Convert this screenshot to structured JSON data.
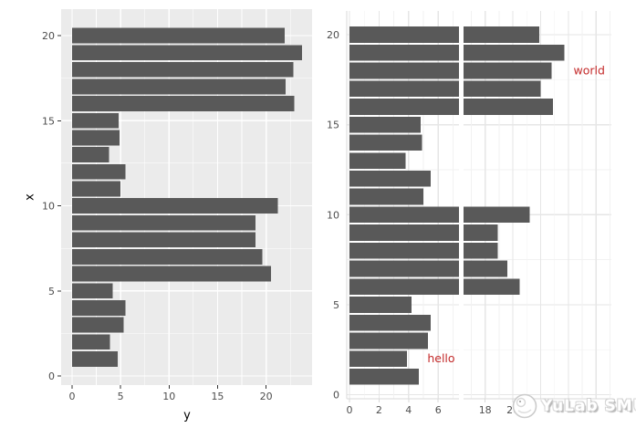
{
  "theme": {
    "bar_color": "#595959",
    "panel_bg_left": "#EBEBEB",
    "grid_left_color": "#FFFFFF",
    "grid_right_major": "#E6E6E6",
    "grid_right_minor": "#F2F2F2",
    "axis_line_right": "#D9D9D9",
    "tick_mark_left": "#333333",
    "tick_label_color": "#4D4D4D",
    "axis_title_color": "#000000",
    "annotation_color": "#C42B2B"
  },
  "watermark": {
    "text": "YuLab SMU",
    "logo": "yulab-logo"
  },
  "chart_data": [
    {
      "type": "bar",
      "orientation": "horizontal",
      "title": "",
      "xlabel": "y",
      "ylabel": "x",
      "legend": "none",
      "grid": "white major+minor gridlines on grey panel",
      "x_ticks": [
        0,
        5,
        10,
        15,
        20
      ],
      "y_ticks": [
        0,
        5,
        10,
        15,
        20
      ],
      "xlim": [
        -1.2,
        24.9
      ],
      "ylim": [
        -0.6,
        21.6
      ],
      "categories": [
        1,
        2,
        3,
        4,
        5,
        6,
        7,
        8,
        9,
        10,
        11,
        12,
        13,
        14,
        15,
        16,
        17,
        18,
        19,
        20
      ],
      "values": [
        4.7,
        3.9,
        5.3,
        5.5,
        4.2,
        20.5,
        19.6,
        18.9,
        18.9,
        21.2,
        5.0,
        5.5,
        3.8,
        4.9,
        4.8,
        22.9,
        22.0,
        22.8,
        23.7,
        21.9
      ]
    },
    {
      "type": "bar",
      "orientation": "horizontal",
      "title": "",
      "xlabel": "",
      "ylabel": "",
      "legend": "none",
      "grid": "light grey major+minor gridlines on white panel",
      "axis_break": [
        7,
        17
      ],
      "x_ticks_segment1": [
        0,
        2,
        4,
        6
      ],
      "x_ticks_segment2": [
        18,
        20
      ],
      "y_ticks": [
        0,
        5,
        10,
        15,
        20
      ],
      "categories": [
        1,
        2,
        3,
        4,
        5,
        6,
        7,
        8,
        9,
        10,
        11,
        12,
        13,
        14,
        15,
        16,
        17,
        18,
        19,
        20
      ],
      "values": [
        4.7,
        3.9,
        5.3,
        5.5,
        4.2,
        20.5,
        19.6,
        18.9,
        18.9,
        21.2,
        5.0,
        5.5,
        3.8,
        4.9,
        4.8,
        22.9,
        22.0,
        22.8,
        23.7,
        21.9
      ],
      "annotations": [
        {
          "label": "hello",
          "x": 6.2,
          "y": 2
        },
        {
          "label": "world",
          "x": 25.5,
          "y": 18
        }
      ]
    }
  ]
}
